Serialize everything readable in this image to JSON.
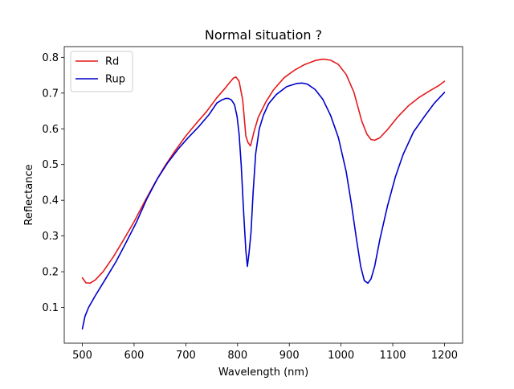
{
  "chart_data": {
    "type": "line",
    "title": "Normal situation ?",
    "xlabel": "Wavelength (nm)",
    "ylabel": "Reflectance",
    "xlim": [
      465,
      1235
    ],
    "ylim": [
      0.0,
      0.83
    ],
    "xticks": [
      500,
      600,
      700,
      800,
      900,
      1000,
      1100,
      1200
    ],
    "xtick_labels": [
      "500",
      "600",
      "700",
      "800",
      "900",
      "1000",
      "1100",
      "1200"
    ],
    "yticks": [
      0.1,
      0.2,
      0.3,
      0.4,
      0.5,
      0.6,
      0.7,
      0.8
    ],
    "ytick_labels": [
      "0.1",
      "0.2",
      "0.3",
      "0.4",
      "0.5",
      "0.6",
      "0.7",
      "0.8"
    ],
    "grid": false,
    "legend_position": "top-left",
    "series": [
      {
        "name": "Rd",
        "color": "#e41a1c",
        "x": [
          500,
          507,
          515,
          525,
          540,
          560,
          580,
          600,
          620,
          640,
          660,
          680,
          700,
          720,
          740,
          760,
          775,
          785,
          792,
          797,
          803,
          810,
          816,
          820,
          825,
          832,
          840,
          855,
          870,
          890,
          910,
          930,
          950,
          965,
          980,
          995,
          1010,
          1025,
          1040,
          1050,
          1058,
          1065,
          1075,
          1090,
          1110,
          1130,
          1150,
          1170,
          1190,
          1200
        ],
        "y": [
          0.183,
          0.169,
          0.168,
          0.177,
          0.2,
          0.242,
          0.29,
          0.34,
          0.395,
          0.448,
          0.497,
          0.54,
          0.58,
          0.615,
          0.648,
          0.687,
          0.712,
          0.73,
          0.742,
          0.745,
          0.733,
          0.68,
          0.58,
          0.562,
          0.552,
          0.593,
          0.632,
          0.676,
          0.71,
          0.743,
          0.764,
          0.78,
          0.791,
          0.795,
          0.792,
          0.78,
          0.752,
          0.702,
          0.622,
          0.585,
          0.57,
          0.568,
          0.575,
          0.598,
          0.634,
          0.664,
          0.687,
          0.705,
          0.722,
          0.733
        ]
      },
      {
        "name": "Rup",
        "color": "#0000cc",
        "x": [
          500,
          505,
          512,
          525,
          545,
          565,
          585,
          605,
          625,
          645,
          665,
          685,
          705,
          725,
          745,
          760,
          770,
          777,
          782,
          788,
          794,
          799,
          803,
          807,
          812,
          816,
          819,
          822,
          826,
          830,
          835,
          842,
          850,
          860,
          875,
          895,
          915,
          925,
          935,
          950,
          965,
          980,
          995,
          1010,
          1020,
          1030,
          1038,
          1045,
          1052,
          1058,
          1065,
          1075,
          1090,
          1105,
          1120,
          1140,
          1160,
          1180,
          1200
        ],
        "y": [
          0.04,
          0.075,
          0.1,
          0.133,
          0.18,
          0.228,
          0.283,
          0.34,
          0.405,
          0.46,
          0.505,
          0.543,
          0.576,
          0.606,
          0.64,
          0.672,
          0.681,
          0.685,
          0.685,
          0.681,
          0.668,
          0.635,
          0.585,
          0.5,
          0.36,
          0.26,
          0.215,
          0.25,
          0.31,
          0.42,
          0.53,
          0.6,
          0.638,
          0.67,
          0.696,
          0.718,
          0.727,
          0.728,
          0.725,
          0.71,
          0.682,
          0.637,
          0.575,
          0.48,
          0.39,
          0.29,
          0.215,
          0.175,
          0.168,
          0.18,
          0.215,
          0.29,
          0.385,
          0.465,
          0.528,
          0.591,
          0.632,
          0.671,
          0.702
        ]
      }
    ]
  }
}
